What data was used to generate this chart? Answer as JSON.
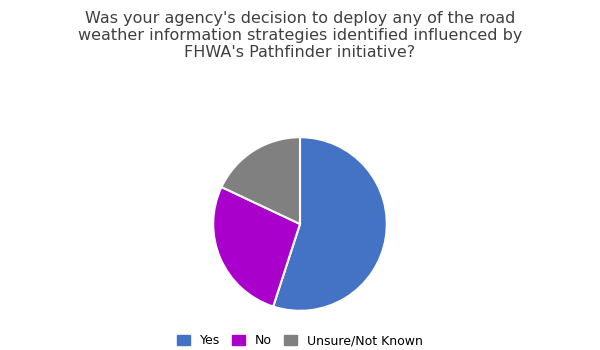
{
  "title": "Was your agency's decision to deploy any of the road\nweather information strategies identified influenced by\nFHWA's Pathfinder initiative?",
  "slices": [
    55,
    27,
    18
  ],
  "labels": [
    "Yes",
    "No",
    "Unsure/Not Known"
  ],
  "colors": [
    "#4472C4",
    "#AA00CC",
    "#808080"
  ],
  "startangle": 90,
  "title_fontsize": 11.5,
  "legend_fontsize": 9,
  "background_color": "#ffffff",
  "title_color": "#404040"
}
